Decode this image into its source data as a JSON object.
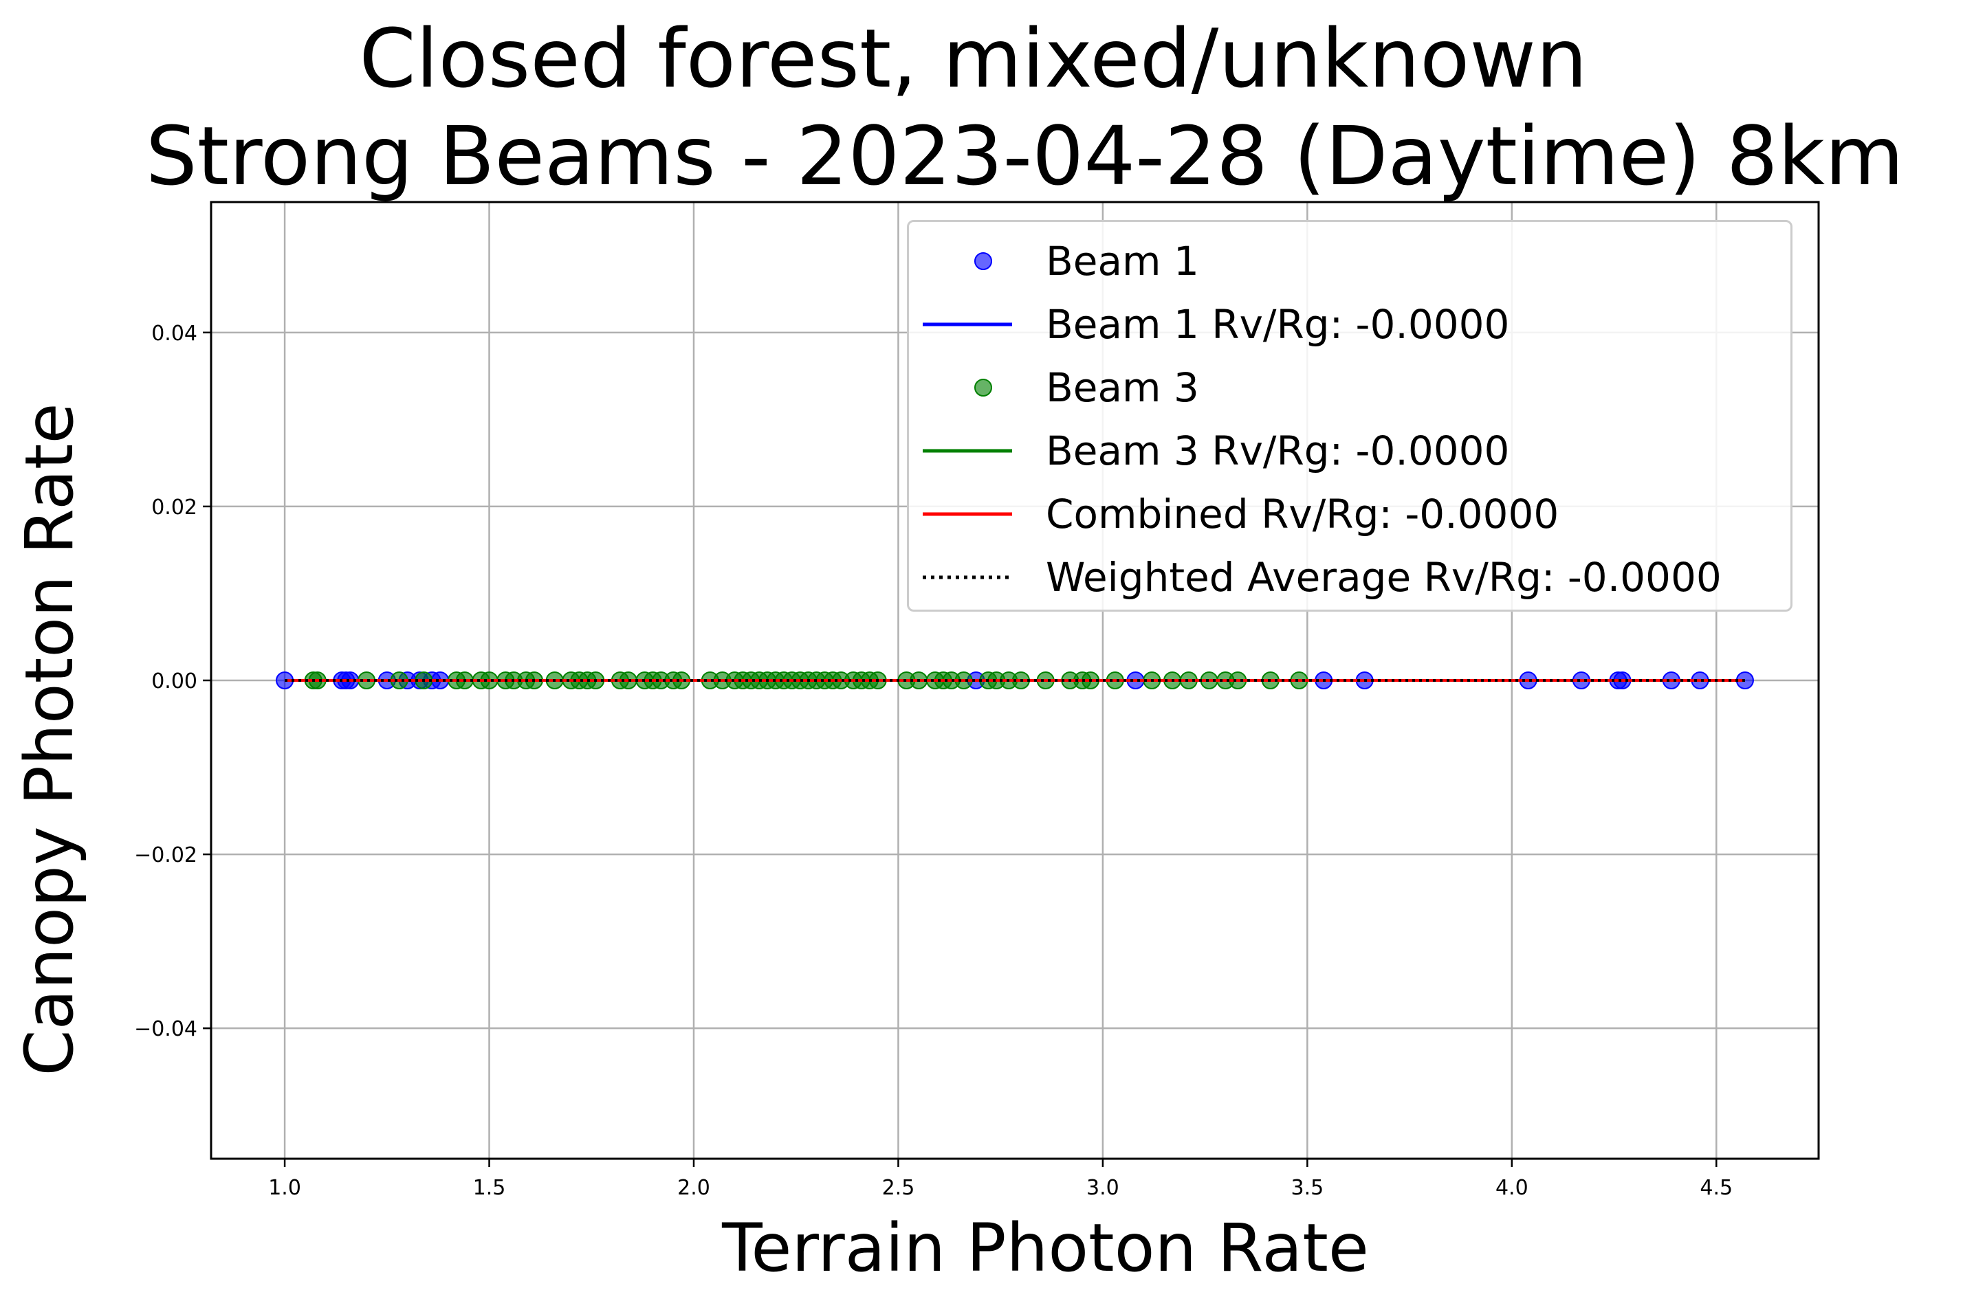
{
  "title_line1": "Closed forest, mixed/unknown",
  "title_line2": "Strong Beams - 2023-04-28 (Daytime) 8km",
  "xlabel": "Terrain Photon Rate",
  "ylabel": "Canopy Photon Rate",
  "chart_data": {
    "type": "scatter",
    "title": "Closed forest, mixed/unknown\nStrong Beams - 2023-04-28 (Daytime) 8km",
    "xlabel": "Terrain Photon Rate",
    "ylabel": "Canopy Photon Rate",
    "xlim": [
      0.82,
      4.75
    ],
    "ylim": [
      -0.055,
      0.055
    ],
    "xticks": [
      1.0,
      1.5,
      2.0,
      2.5,
      3.0,
      3.5,
      4.0,
      4.5
    ],
    "yticks": [
      -0.04,
      -0.02,
      0.0,
      0.02,
      0.04
    ],
    "xtick_labels": [
      "1.0",
      "1.5",
      "2.0",
      "2.5",
      "3.0",
      "3.5",
      "4.0",
      "4.5"
    ],
    "ytick_labels": [
      "−0.04",
      "−0.02",
      "0.00",
      "0.02",
      "0.04"
    ],
    "grid": true,
    "legend_position": "top-right",
    "series": [
      {
        "name": "Beam 1",
        "kind": "scatter",
        "color": "#0000ff",
        "x": [
          1.0,
          1.14,
          1.15,
          1.16,
          1.25,
          1.3,
          1.33,
          1.36,
          1.38,
          2.69,
          3.08,
          3.54,
          3.64,
          4.04,
          4.17,
          4.26,
          4.27,
          4.39,
          4.46,
          4.57
        ],
        "y": [
          0,
          0,
          0,
          0,
          0,
          0,
          0,
          0,
          0,
          0,
          0,
          0,
          0,
          0,
          0,
          0,
          0,
          0,
          0,
          0
        ]
      },
      {
        "name": "Beam 1 Rv/Rg: -0.0000",
        "kind": "line",
        "color": "#0000ff",
        "x": [
          1.0,
          4.57
        ],
        "y": [
          0,
          0
        ]
      },
      {
        "name": "Beam 3",
        "kind": "scatter",
        "color": "#008000",
        "x": [
          1.07,
          1.08,
          1.2,
          1.28,
          1.34,
          1.42,
          1.44,
          1.48,
          1.5,
          1.54,
          1.56,
          1.59,
          1.61,
          1.66,
          1.7,
          1.72,
          1.74,
          1.76,
          1.82,
          1.84,
          1.88,
          1.9,
          1.92,
          1.95,
          1.97,
          2.04,
          2.07,
          2.1,
          2.12,
          2.14,
          2.16,
          2.18,
          2.2,
          2.22,
          2.24,
          2.26,
          2.28,
          2.3,
          2.32,
          2.34,
          2.36,
          2.39,
          2.41,
          2.43,
          2.45,
          2.52,
          2.55,
          2.59,
          2.61,
          2.63,
          2.66,
          2.72,
          2.74,
          2.77,
          2.8,
          2.86,
          2.92,
          2.95,
          2.97,
          3.03,
          3.12,
          3.17,
          3.21,
          3.26,
          3.3,
          3.33,
          3.41,
          3.48
        ],
        "y": [
          0,
          0,
          0,
          0,
          0,
          0,
          0,
          0,
          0,
          0,
          0,
          0,
          0,
          0,
          0,
          0,
          0,
          0,
          0,
          0,
          0,
          0,
          0,
          0,
          0,
          0,
          0,
          0,
          0,
          0,
          0,
          0,
          0,
          0,
          0,
          0,
          0,
          0,
          0,
          0,
          0,
          0,
          0,
          0,
          0,
          0,
          0,
          0,
          0,
          0,
          0,
          0,
          0,
          0,
          0,
          0,
          0,
          0,
          0,
          0,
          0,
          0,
          0,
          0,
          0,
          0,
          0,
          0
        ]
      },
      {
        "name": "Beam 3 Rv/Rg: -0.0000",
        "kind": "line",
        "color": "#008000",
        "x": [
          1.07,
          3.48
        ],
        "y": [
          0,
          0
        ]
      },
      {
        "name": "Combined Rv/Rg: -0.0000",
        "kind": "line",
        "color": "#ff0000",
        "x": [
          1.0,
          4.57
        ],
        "y": [
          0,
          0
        ]
      },
      {
        "name": "Weighted Average Rv/Rg: -0.0000",
        "kind": "dotted-line",
        "color": "#000000",
        "x": [
          1.0,
          4.57
        ],
        "y": [
          0,
          0
        ]
      }
    ]
  },
  "legend": [
    {
      "label": "Beam 1",
      "kind": "marker",
      "color": "#0000ff"
    },
    {
      "label": "Beam 1 Rv/Rg: -0.0000",
      "kind": "line",
      "color": "#0000ff"
    },
    {
      "label": "Beam 3",
      "kind": "marker",
      "color": "#008000"
    },
    {
      "label": "Beam 3 Rv/Rg: -0.0000",
      "kind": "line",
      "color": "#008000"
    },
    {
      "label": "Combined Rv/Rg: -0.0000",
      "kind": "line",
      "color": "#ff0000"
    },
    {
      "label": "Weighted Average Rv/Rg: -0.0000",
      "kind": "dotted",
      "color": "#000000"
    }
  ]
}
